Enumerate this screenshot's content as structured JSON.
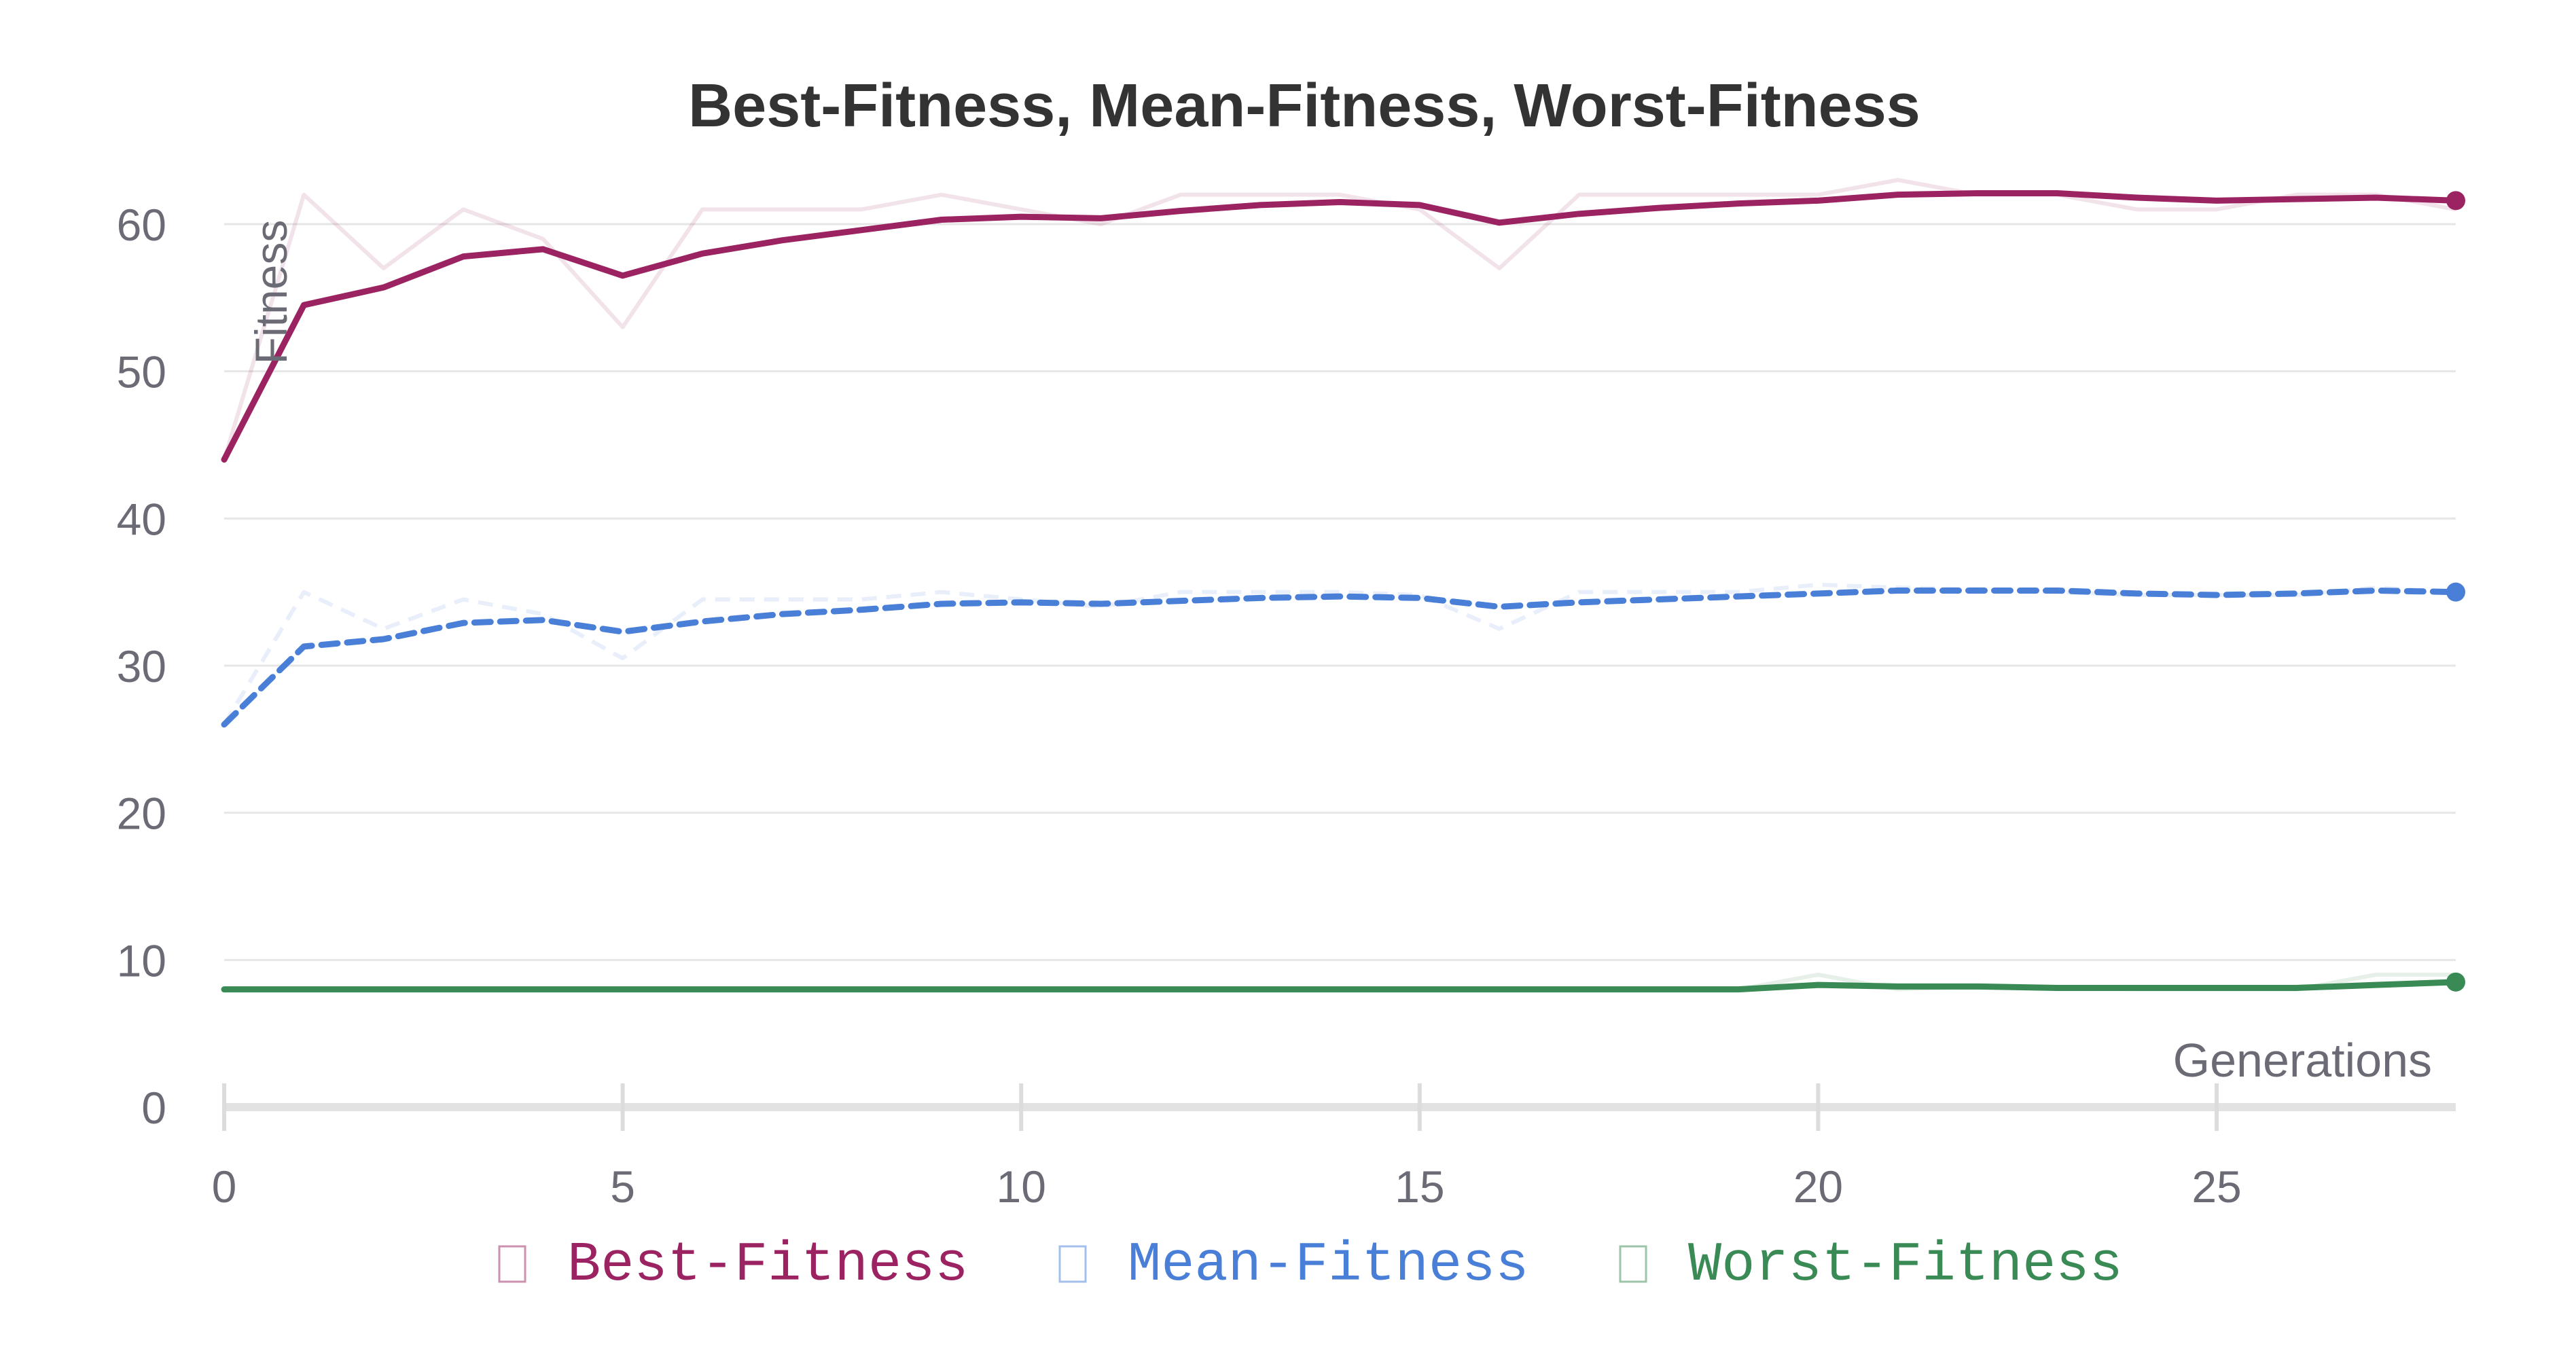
{
  "chart_data": {
    "type": "line",
    "title": "Best-Fitness, Mean-Fitness, Worst-Fitness",
    "xlabel": "Generations",
    "ylabel": "Fitness",
    "xlim": [
      0,
      28
    ],
    "ylim": [
      0,
      65
    ],
    "x_ticks": [
      0,
      5,
      10,
      15,
      20,
      25
    ],
    "y_ticks": [
      0,
      10,
      20,
      30,
      40,
      50,
      60
    ],
    "grid": true,
    "legend_position": "bottom-center",
    "x": [
      0,
      1,
      2,
      3,
      4,
      5,
      6,
      7,
      8,
      9,
      10,
      11,
      12,
      13,
      14,
      15,
      16,
      17,
      18,
      19,
      20,
      21,
      22,
      23,
      24,
      25,
      26,
      27,
      28
    ],
    "series": [
      {
        "name": "Best-Fitness",
        "color": "#9b2362",
        "dash": "solid",
        "raw": [
          44,
          62,
          57,
          61,
          59,
          53,
          61,
          61,
          61,
          62,
          61,
          60,
          62,
          62,
          62,
          61,
          57,
          62,
          62,
          62,
          62,
          63,
          62,
          62,
          61,
          61,
          62,
          62,
          61
        ],
        "values": [
          44,
          54.5,
          55.7,
          57.8,
          58.3,
          56.5,
          58,
          58.9,
          59.6,
          60.3,
          60.5,
          60.4,
          60.9,
          61.3,
          61.5,
          61.3,
          60.1,
          60.7,
          61.1,
          61.4,
          61.6,
          62,
          62.1,
          62.1,
          61.8,
          61.6,
          61.7,
          61.8,
          61.6
        ]
      },
      {
        "name": "Mean-Fitness",
        "color": "#4a7fd8",
        "dash": "dashed",
        "raw": [
          26,
          35,
          32.5,
          34.5,
          33.5,
          30.5,
          34.5,
          34.5,
          34.5,
          35,
          34.5,
          34,
          35,
          35,
          35,
          34.8,
          32.5,
          35,
          35,
          35,
          35.5,
          35.3,
          35.2,
          35,
          34.8,
          34.8,
          34.8,
          35.3,
          35
        ],
        "values": [
          26,
          31.3,
          31.8,
          32.9,
          33.1,
          32.3,
          33,
          33.5,
          33.8,
          34.2,
          34.3,
          34.2,
          34.4,
          34.6,
          34.7,
          34.6,
          34,
          34.3,
          34.5,
          34.7,
          34.9,
          35.1,
          35.1,
          35.1,
          34.9,
          34.8,
          34.9,
          35.1,
          35
        ]
      },
      {
        "name": "Worst-Fitness",
        "color": "#3a8a55",
        "dash": "solid",
        "raw": [
          8,
          8,
          8,
          8,
          8,
          8,
          8,
          8,
          8,
          8,
          8,
          8,
          8,
          8,
          8,
          8,
          8,
          8,
          8,
          8,
          9,
          8,
          8.2,
          8.1,
          8,
          8,
          8,
          9,
          9
        ],
        "values": [
          8,
          8,
          8,
          8,
          8,
          8,
          8,
          8,
          8,
          8,
          8,
          8,
          8,
          8,
          8,
          8,
          8,
          8,
          8,
          8,
          8.3,
          8.2,
          8.2,
          8.1,
          8.1,
          8.1,
          8.1,
          8.3,
          8.5
        ]
      }
    ]
  }
}
